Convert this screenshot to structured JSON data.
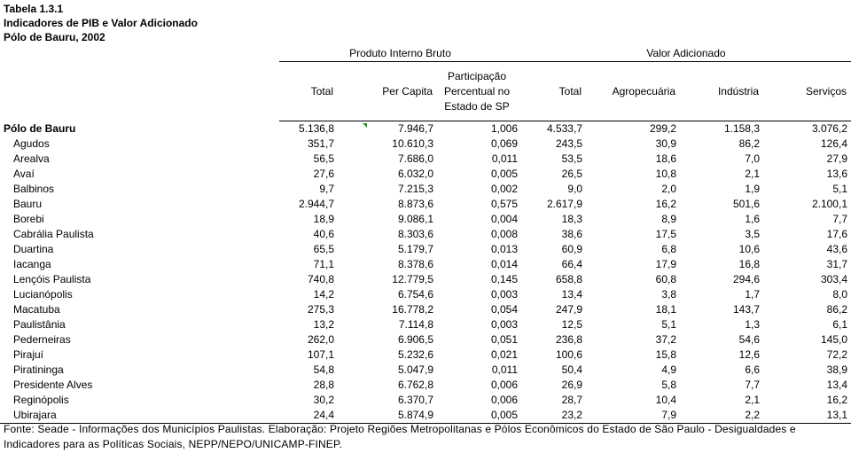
{
  "header": {
    "table_number": "Tabela 1.3.1",
    "title": "Indicadores de PIB e Valor Adicionado",
    "subtitle": "Pólo de Bauru, 2002"
  },
  "groups": {
    "pib": "Produto Interno Bruto",
    "va": "Valor Adicionado"
  },
  "columns": {
    "total": "Total",
    "per_capita": "Per Capita",
    "participacao": "Participação Percentual no Estado de SP",
    "va_total": "Total",
    "agro": "Agropecuária",
    "industria": "Indústria",
    "servicos": "Serviços"
  },
  "rows": [
    {
      "name": "Pólo de Bauru",
      "total": "5.136,8",
      "per_capita": "7.946,7",
      "part": "1,006",
      "va_total": "4.533,7",
      "agro": "299,2",
      "ind": "1.158,3",
      "serv": "3.076,2"
    },
    {
      "name": "Agudos",
      "total": "351,7",
      "per_capita": "10.610,3",
      "part": "0,069",
      "va_total": "243,5",
      "agro": "30,9",
      "ind": "86,2",
      "serv": "126,4"
    },
    {
      "name": "Arealva",
      "total": "56,5",
      "per_capita": "7.686,0",
      "part": "0,011",
      "va_total": "53,5",
      "agro": "18,6",
      "ind": "7,0",
      "serv": "27,9"
    },
    {
      "name": "Avaí",
      "total": "27,6",
      "per_capita": "6.032,0",
      "part": "0,005",
      "va_total": "26,5",
      "agro": "10,8",
      "ind": "2,1",
      "serv": "13,6"
    },
    {
      "name": "Balbinos",
      "total": "9,7",
      "per_capita": "7.215,3",
      "part": "0,002",
      "va_total": "9,0",
      "agro": "2,0",
      "ind": "1,9",
      "serv": "5,1"
    },
    {
      "name": "Bauru",
      "total": "2.944,7",
      "per_capita": "8.873,6",
      "part": "0,575",
      "va_total": "2.617,9",
      "agro": "16,2",
      "ind": "501,6",
      "serv": "2.100,1"
    },
    {
      "name": "Borebi",
      "total": "18,9",
      "per_capita": "9.086,1",
      "part": "0,004",
      "va_total": "18,3",
      "agro": "8,9",
      "ind": "1,6",
      "serv": "7,7"
    },
    {
      "name": "Cabrália Paulista",
      "total": "40,6",
      "per_capita": "8.303,6",
      "part": "0,008",
      "va_total": "38,6",
      "agro": "17,5",
      "ind": "3,5",
      "serv": "17,6"
    },
    {
      "name": "Duartina",
      "total": "65,5",
      "per_capita": "5.179,7",
      "part": "0,013",
      "va_total": "60,9",
      "agro": "6,8",
      "ind": "10,6",
      "serv": "43,6"
    },
    {
      "name": "Iacanga",
      "total": "71,1",
      "per_capita": "8.378,6",
      "part": "0,014",
      "va_total": "66,4",
      "agro": "17,9",
      "ind": "16,8",
      "serv": "31,7"
    },
    {
      "name": "Lençóis Paulista",
      "total": "740,8",
      "per_capita": "12.779,5",
      "part": "0,145",
      "va_total": "658,8",
      "agro": "60,8",
      "ind": "294,6",
      "serv": "303,4"
    },
    {
      "name": "Lucianópolis",
      "total": "14,2",
      "per_capita": "6.754,6",
      "part": "0,003",
      "va_total": "13,4",
      "agro": "3,8",
      "ind": "1,7",
      "serv": "8,0"
    },
    {
      "name": "Macatuba",
      "total": "275,3",
      "per_capita": "16.778,2",
      "part": "0,054",
      "va_total": "247,9",
      "agro": "18,1",
      "ind": "143,7",
      "serv": "86,2"
    },
    {
      "name": "Paulistânia",
      "total": "13,2",
      "per_capita": "7.114,8",
      "part": "0,003",
      "va_total": "12,5",
      "agro": "5,1",
      "ind": "1,3",
      "serv": "6,1"
    },
    {
      "name": "Pederneiras",
      "total": "262,0",
      "per_capita": "6.906,5",
      "part": "0,051",
      "va_total": "236,8",
      "agro": "37,2",
      "ind": "54,6",
      "serv": "145,0"
    },
    {
      "name": "Pirajuí",
      "total": "107,1",
      "per_capita": "5.232,6",
      "part": "0,021",
      "va_total": "100,6",
      "agro": "15,8",
      "ind": "12,6",
      "serv": "72,2"
    },
    {
      "name": "Piratininga",
      "total": "54,8",
      "per_capita": "5.047,9",
      "part": "0,011",
      "va_total": "50,4",
      "agro": "4,9",
      "ind": "6,6",
      "serv": "38,9"
    },
    {
      "name": "Presidente Alves",
      "total": "28,8",
      "per_capita": "6.762,8",
      "part": "0,006",
      "va_total": "26,9",
      "agro": "5,8",
      "ind": "7,7",
      "serv": "13,4"
    },
    {
      "name": "Reginópolis",
      "total": "30,2",
      "per_capita": "6.370,7",
      "part": "0,006",
      "va_total": "28,7",
      "agro": "10,4",
      "ind": "2,1",
      "serv": "16,2"
    },
    {
      "name": "Ubirajara",
      "total": "24,4",
      "per_capita": "5.874,9",
      "part": "0,005",
      "va_total": "23,2",
      "agro": "7,9",
      "ind": "2,2",
      "serv": "13,1"
    }
  ],
  "footer": "Fonte: Seade - Informações dos Municípios Paulistas. Elaboração: Projeto Regiões Metropolitanas e Pólos Econômicos do Estado de São Paulo - Desigualdades e Indicadores para as Políticas Sociais, NEPP/NEPO/UNICAMP-FINEP."
}
